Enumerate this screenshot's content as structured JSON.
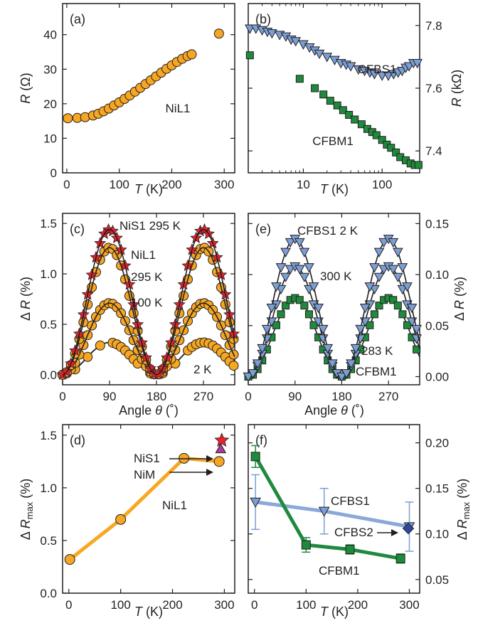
{
  "colors": {
    "orange": "#f5a623",
    "orange_line": "#f7a823",
    "blue": "#7b9fd4",
    "blue_line": "#8aa8d8",
    "green": "#1e8a3c",
    "green_line": "#1f8a3e",
    "red": "#e8212b",
    "magenta": "#a83c9c",
    "navy": "#2b4aa0",
    "fit": "#231f20"
  },
  "chart_data": [
    {
      "id": "a",
      "panel_label": "(a)",
      "type": "scatter",
      "xlabel": "T (K)",
      "ylabel": "R (Ω)",
      "xlim": [
        -8,
        320
      ],
      "ylim": [
        0,
        49
      ],
      "xticks": [
        "0",
        "100",
        "200",
        "300"
      ],
      "yticks": [
        "0",
        "10",
        "20",
        "30",
        "40"
      ],
      "annotations": [
        "NiL1"
      ],
      "series": [
        {
          "name": "NiL1",
          "x": [
            2,
            20,
            35,
            50,
            60,
            70,
            80,
            90,
            100,
            110,
            120,
            130,
            140,
            150,
            160,
            170,
            180,
            190,
            200,
            210,
            220,
            230,
            238,
            290
          ],
          "y": [
            15.8,
            15.9,
            16.1,
            16.6,
            17.1,
            17.8,
            18.6,
            19.5,
            20.4,
            21.4,
            22.4,
            23.5,
            24.6,
            25.7,
            26.8,
            27.9,
            29.0,
            30.1,
            31.1,
            32.1,
            33.0,
            33.8,
            34.3,
            40.3
          ]
        }
      ]
    },
    {
      "id": "b",
      "panel_label": "(b)",
      "type": "scatter",
      "xlabel": "T (K)",
      "ylabel": "R (kΩ)",
      "x_scale": "log",
      "xlim": [
        2,
        300
      ],
      "ylim": [
        7.33,
        7.87
      ],
      "xticks": [
        "10",
        "100"
      ],
      "yticks": [
        "7.4",
        "7.6",
        "7.8"
      ],
      "annotations": [
        "CFBS1",
        "CFBM1"
      ],
      "series": [
        {
          "name": "CFBS1",
          "x": [
            2.1,
            2.5,
            3,
            3.5,
            4,
            5,
            6,
            7,
            8,
            10,
            12,
            14,
            16,
            20,
            25,
            30,
            35,
            40,
            50,
            60,
            70,
            80,
            100,
            120,
            140,
            160,
            180,
            200,
            220,
            250,
            280
          ],
          "y": [
            7.79,
            7.79,
            7.785,
            7.78,
            7.775,
            7.77,
            7.765,
            7.755,
            7.75,
            7.74,
            7.73,
            7.72,
            7.71,
            7.7,
            7.69,
            7.68,
            7.675,
            7.67,
            7.66,
            7.655,
            7.65,
            7.645,
            7.64,
            7.64,
            7.645,
            7.65,
            7.655,
            7.665,
            7.67,
            7.68,
            7.68
          ]
        },
        {
          "name": "CFBM1",
          "x": [
            2.1,
            9,
            14,
            18,
            22,
            27,
            32,
            38,
            45,
            55,
            65,
            75,
            85,
            100,
            115,
            130,
            150,
            170,
            200,
            230,
            260,
            290
          ],
          "y": [
            7.705,
            7.63,
            7.6,
            7.58,
            7.56,
            7.545,
            7.53,
            7.515,
            7.5,
            7.485,
            7.47,
            7.46,
            7.45,
            7.435,
            7.42,
            7.41,
            7.395,
            7.38,
            7.37,
            7.36,
            7.355,
            7.355
          ]
        }
      ]
    },
    {
      "id": "c",
      "panel_label": "(c)",
      "type": "scatter",
      "xlabel": "Angle θ (˚)",
      "ylabel": "Δ R (%)",
      "xlim": [
        0,
        330
      ],
      "ylim": [
        -0.1,
        1.6
      ],
      "xticks": [
        "0",
        "90",
        "180",
        "270"
      ],
      "yticks": [
        "0.0",
        "0.5",
        "1.0",
        "1.5"
      ],
      "annotations": [
        "NiS1 295 K",
        "NiL1",
        "295 K",
        "100 K",
        "2 K"
      ],
      "series": [
        {
          "name": "NiS1 295 K",
          "amplitude": 1.44,
          "marker": "star"
        },
        {
          "name": "NiL1 295 K",
          "amplitude": 1.26,
          "marker": "circle"
        },
        {
          "name": "NiL1 100 K",
          "amplitude": 0.71,
          "marker": "circle"
        },
        {
          "name": "NiL1 2 K",
          "amplitude": 0.32,
          "marker": "circle"
        }
      ]
    },
    {
      "id": "e",
      "panel_label": "(e)",
      "type": "scatter",
      "xlabel": "Angle θ (˚)",
      "ylabel": "Δ R (%)",
      "xlim": [
        0,
        330
      ],
      "ylim": [
        -0.008,
        0.16
      ],
      "xticks": [
        "0",
        "90",
        "180",
        "270"
      ],
      "yticks": [
        "0.00",
        "0.05",
        "0.10",
        "0.15"
      ],
      "annotations": [
        "CFBS1 2 K",
        "300 K",
        "283 K",
        "CFBM1"
      ],
      "series": [
        {
          "name": "CFBS1 2 K",
          "amplitude": 0.135,
          "marker": "triangle"
        },
        {
          "name": "CFBS1 300 K",
          "amplitude": 0.108,
          "marker": "triangle"
        },
        {
          "name": "CFBM1 283 K",
          "amplitude": 0.077,
          "marker": "square"
        }
      ]
    },
    {
      "id": "d",
      "panel_label": "(d)",
      "type": "line",
      "xlabel": "T (K)",
      "ylabel": "Δ Rmax (%)",
      "xlim": [
        -12,
        320
      ],
      "ylim": [
        0,
        1.6
      ],
      "xticks": [
        "0",
        "100",
        "200",
        "300"
      ],
      "yticks": [
        "0.0",
        "0.5",
        "1.0",
        "1.5"
      ],
      "annotations": [
        "NiS1",
        "NiM",
        "NiL1"
      ],
      "series": [
        {
          "name": "NiL1",
          "x": [
            2,
            100,
            222,
            290
          ],
          "y": [
            0.32,
            0.7,
            1.28,
            1.25
          ]
        },
        {
          "name": "NiS1",
          "x": [
            295
          ],
          "y": [
            1.45
          ]
        },
        {
          "name": "NiM",
          "x": [
            293
          ],
          "y": [
            1.37
          ]
        }
      ]
    },
    {
      "id": "f",
      "panel_label": "(f)",
      "type": "line",
      "xlabel": "T (K)",
      "ylabel": "Δ Rmax (%)",
      "xlim": [
        -12,
        320
      ],
      "ylim": [
        0.035,
        0.22
      ],
      "xticks": [
        "0",
        "100",
        "200",
        "300"
      ],
      "yticks": [
        "0.05",
        "0.10",
        "0.15",
        "0.20"
      ],
      "annotations": [
        "CFBS1",
        "CFBS2",
        "CFBM1"
      ],
      "series": [
        {
          "name": "CFBS1",
          "x": [
            2,
            135,
            300
          ],
          "y": [
            0.135,
            0.125,
            0.108
          ],
          "err": [
            0.03,
            0.025,
            0.027
          ]
        },
        {
          "name": "CFBM1",
          "x": [
            2,
            100,
            185,
            283
          ],
          "y": [
            0.185,
            0.088,
            0.083,
            0.073
          ],
          "err": [
            0.012,
            0.008,
            0.005,
            0.005
          ]
        },
        {
          "name": "CFBS2",
          "x": [
            298
          ],
          "y": [
            0.106
          ],
          "err": []
        }
      ]
    }
  ]
}
